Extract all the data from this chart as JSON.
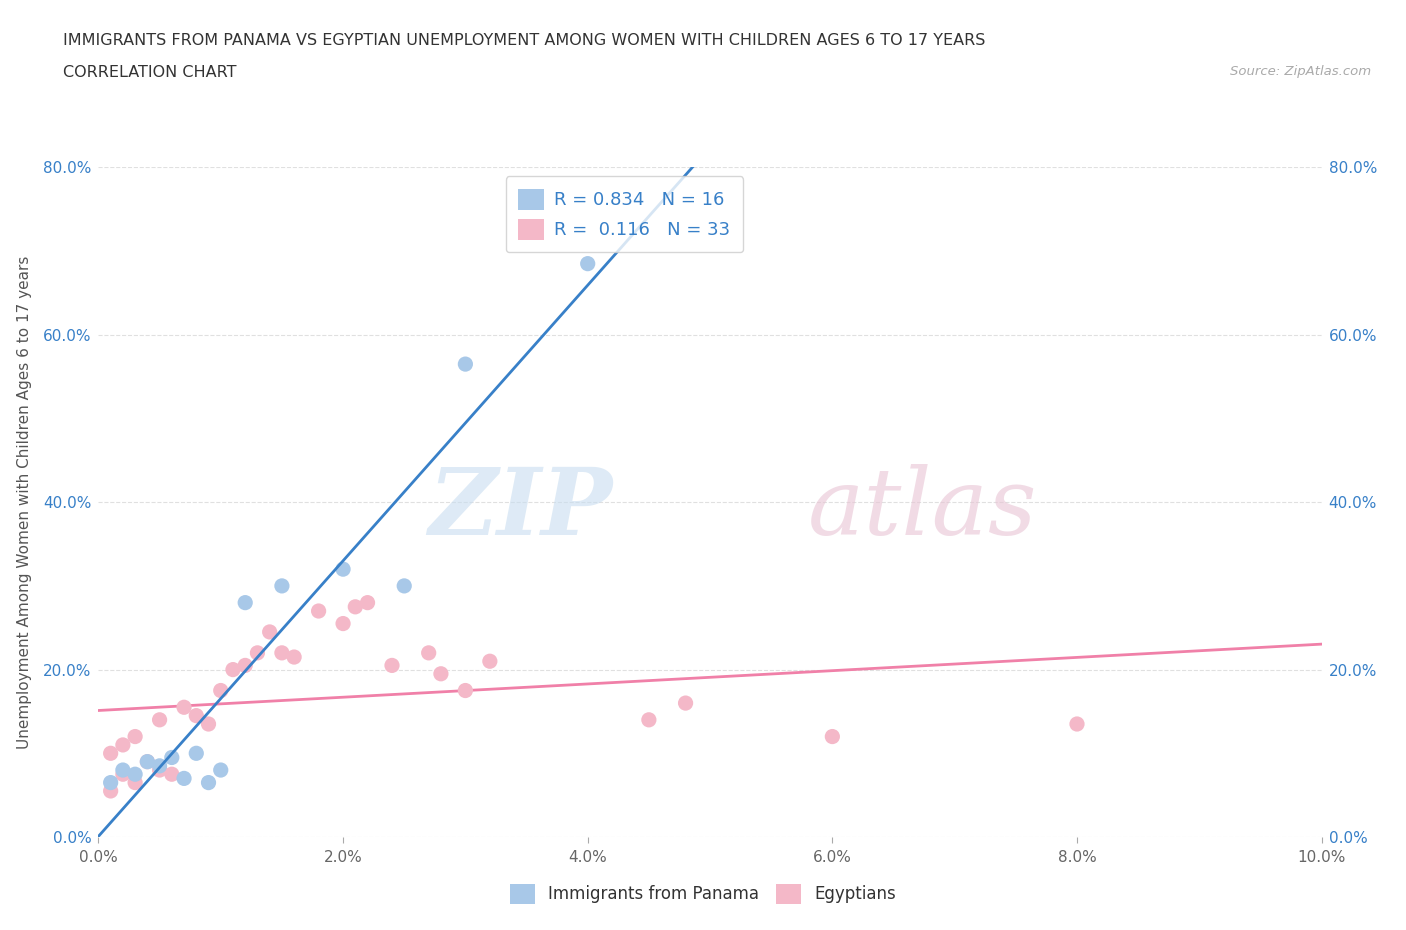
{
  "title_line1": "IMMIGRANTS FROM PANAMA VS EGYPTIAN UNEMPLOYMENT AMONG WOMEN WITH CHILDREN AGES 6 TO 17 YEARS",
  "title_line2": "CORRELATION CHART",
  "source_text": "Source: ZipAtlas.com",
  "xlabel": "Immigrants from Panama",
  "ylabel": "Unemployment Among Women with Children Ages 6 to 17 years",
  "xlim": [
    0.0,
    0.1
  ],
  "ylim": [
    0.0,
    0.8
  ],
  "xtick_labels": [
    "0.0%",
    "2.0%",
    "4.0%",
    "6.0%",
    "8.0%",
    "10.0%"
  ],
  "ytick_labels": [
    "0.0%",
    "20.0%",
    "40.0%",
    "60.0%",
    "80.0%"
  ],
  "xtick_values": [
    0.0,
    0.02,
    0.04,
    0.06,
    0.08,
    0.1
  ],
  "ytick_values": [
    0.0,
    0.2,
    0.4,
    0.6,
    0.8
  ],
  "panama_color": "#a8c8e8",
  "egypt_color": "#f4b8c8",
  "panama_line_color": "#3880c8",
  "egypt_line_color": "#f080a8",
  "r_panama": 0.834,
  "n_panama": 16,
  "r_egypt": 0.116,
  "n_egypt": 33,
  "watermark_zip": "ZIP",
  "watermark_atlas": "atlas",
  "background_color": "#ffffff",
  "grid_color": "#e0e0e0",
  "panama_scatter_x": [
    0.001,
    0.002,
    0.003,
    0.004,
    0.005,
    0.006,
    0.007,
    0.008,
    0.009,
    0.01,
    0.012,
    0.015,
    0.02,
    0.025,
    0.03,
    0.04
  ],
  "panama_scatter_y": [
    0.065,
    0.08,
    0.075,
    0.09,
    0.085,
    0.095,
    0.07,
    0.1,
    0.065,
    0.08,
    0.28,
    0.3,
    0.32,
    0.3,
    0.565,
    0.685
  ],
  "egypt_scatter_x": [
    0.001,
    0.001,
    0.002,
    0.002,
    0.003,
    0.003,
    0.004,
    0.005,
    0.005,
    0.006,
    0.007,
    0.008,
    0.009,
    0.01,
    0.011,
    0.012,
    0.013,
    0.014,
    0.015,
    0.016,
    0.018,
    0.02,
    0.021,
    0.022,
    0.024,
    0.027,
    0.028,
    0.03,
    0.032,
    0.045,
    0.048,
    0.06,
    0.08
  ],
  "egypt_scatter_y": [
    0.055,
    0.1,
    0.075,
    0.11,
    0.065,
    0.12,
    0.09,
    0.14,
    0.08,
    0.075,
    0.155,
    0.145,
    0.135,
    0.175,
    0.2,
    0.205,
    0.22,
    0.245,
    0.22,
    0.215,
    0.27,
    0.255,
    0.275,
    0.28,
    0.205,
    0.22,
    0.195,
    0.175,
    0.21,
    0.14,
    0.16,
    0.12,
    0.135
  ],
  "legend_labels": [
    "Immigrants from Panama",
    "Egyptians"
  ]
}
